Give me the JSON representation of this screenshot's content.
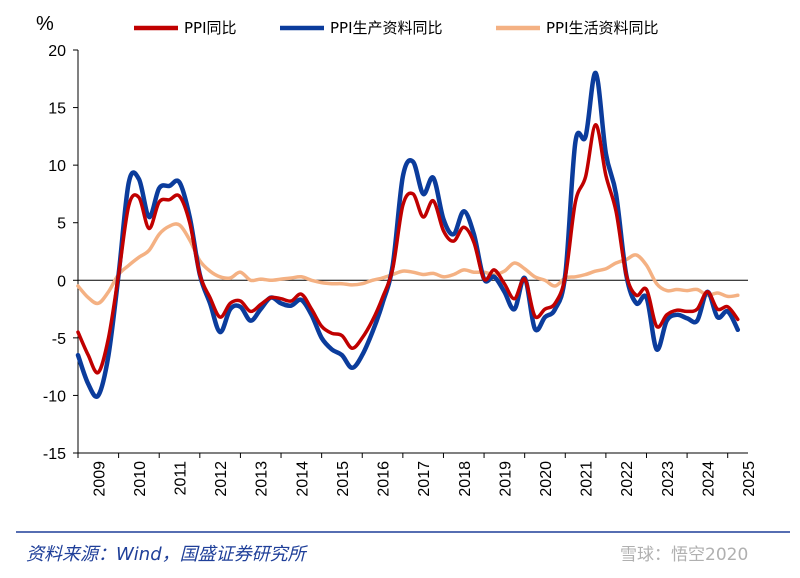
{
  "chart_data": {
    "type": "line",
    "y_unit": "%",
    "ylim": [
      -15,
      20
    ],
    "yticks": [
      -15,
      -10,
      -5,
      0,
      5,
      10,
      15,
      20
    ],
    "xlim": [
      2009.0,
      2025.5
    ],
    "xticks": [
      "2009",
      "2010",
      "2011",
      "2012",
      "2013",
      "2014",
      "2015",
      "2016",
      "2017",
      "2018",
      "2019",
      "2020",
      "2021",
      "2022",
      "2023",
      "2024",
      "2025"
    ],
    "grid": false,
    "legend_position": "top",
    "source_note": "资料来源：Wind，国盛证券研究所",
    "watermark": "雪球：悟空2020",
    "series": [
      {
        "name": "PPI同比",
        "color": "#c00000",
        "x": [
          2009.0,
          2009.25,
          2009.5,
          2009.75,
          2010.0,
          2010.25,
          2010.5,
          2010.75,
          2011.0,
          2011.25,
          2011.5,
          2011.75,
          2012.0,
          2012.25,
          2012.5,
          2012.75,
          2013.0,
          2013.25,
          2013.5,
          2013.75,
          2014.0,
          2014.25,
          2014.5,
          2014.75,
          2015.0,
          2015.25,
          2015.5,
          2015.75,
          2016.0,
          2016.25,
          2016.5,
          2016.75,
          2017.0,
          2017.25,
          2017.5,
          2017.75,
          2018.0,
          2018.25,
          2018.5,
          2018.75,
          2019.0,
          2019.25,
          2019.5,
          2019.75,
          2020.0,
          2020.25,
          2020.5,
          2020.75,
          2021.0,
          2021.25,
          2021.5,
          2021.75,
          2022.0,
          2022.25,
          2022.5,
          2022.75,
          2023.0,
          2023.25,
          2023.5,
          2023.75,
          2024.0,
          2024.25,
          2024.5,
          2024.75,
          2025.0,
          2025.25
        ],
        "values": [
          -4.5,
          -6.5,
          -8.0,
          -5.0,
          0.5,
          6.5,
          7.2,
          4.5,
          6.8,
          7.0,
          7.3,
          5.0,
          0.5,
          -1.5,
          -3.2,
          -2.0,
          -1.8,
          -2.7,
          -2.1,
          -1.5,
          -1.6,
          -1.8,
          -1.2,
          -2.5,
          -4.0,
          -4.6,
          -4.8,
          -5.9,
          -5.0,
          -3.5,
          -1.5,
          1.0,
          6.5,
          7.5,
          5.5,
          6.9,
          4.3,
          3.4,
          4.6,
          3.3,
          0.1,
          0.9,
          -0.3,
          -1.6,
          0.1,
          -3.1,
          -2.5,
          -2.0,
          0.3,
          6.8,
          9.0,
          13.5,
          9.1,
          6.0,
          0.5,
          -1.3,
          -0.8,
          -4.0,
          -3.0,
          -2.6,
          -2.7,
          -2.5,
          -1.0,
          -2.5,
          -2.3,
          -3.4
        ]
      },
      {
        "name": "PPI生产资料同比",
        "color": "#0b3c9c",
        "x": [
          2009.0,
          2009.25,
          2009.5,
          2009.75,
          2010.0,
          2010.25,
          2010.5,
          2010.75,
          2011.0,
          2011.25,
          2011.5,
          2011.75,
          2012.0,
          2012.25,
          2012.5,
          2012.75,
          2013.0,
          2013.25,
          2013.5,
          2013.75,
          2014.0,
          2014.25,
          2014.5,
          2014.75,
          2015.0,
          2015.25,
          2015.5,
          2015.75,
          2016.0,
          2016.25,
          2016.5,
          2016.75,
          2017.0,
          2017.25,
          2017.5,
          2017.75,
          2018.0,
          2018.25,
          2018.5,
          2018.75,
          2019.0,
          2019.25,
          2019.5,
          2019.75,
          2020.0,
          2020.25,
          2020.5,
          2020.75,
          2021.0,
          2021.25,
          2021.5,
          2021.75,
          2022.0,
          2022.25,
          2022.5,
          2022.75,
          2023.0,
          2023.25,
          2023.5,
          2023.75,
          2024.0,
          2024.25,
          2024.5,
          2024.75,
          2025.0,
          2025.25
        ],
        "values": [
          -6.5,
          -9.0,
          -10.0,
          -6.5,
          0.5,
          8.5,
          8.8,
          5.5,
          8.0,
          8.2,
          8.5,
          5.5,
          0.5,
          -2.0,
          -4.5,
          -2.5,
          -2.3,
          -3.5,
          -2.5,
          -1.5,
          -2.0,
          -2.2,
          -1.7,
          -3.0,
          -5.0,
          -6.0,
          -6.5,
          -7.6,
          -6.5,
          -4.5,
          -2.0,
          1.3,
          9.0,
          10.3,
          7.5,
          8.9,
          5.3,
          4.0,
          6.0,
          4.0,
          0.1,
          0.3,
          -1.0,
          -2.5,
          0.2,
          -4.2,
          -3.2,
          -2.5,
          0.5,
          12.0,
          12.5,
          18.0,
          11.0,
          7.5,
          0.5,
          -2.0,
          -1.5,
          -6.0,
          -3.5,
          -3.0,
          -3.3,
          -3.5,
          -1.0,
          -3.2,
          -2.7,
          -4.3
        ]
      },
      {
        "name": "PPI生活资料同比",
        "color": "#f4b183",
        "x": [
          2009.0,
          2009.25,
          2009.5,
          2009.75,
          2010.0,
          2010.25,
          2010.5,
          2010.75,
          2011.0,
          2011.25,
          2011.5,
          2011.75,
          2012.0,
          2012.25,
          2012.5,
          2012.75,
          2013.0,
          2013.25,
          2013.5,
          2013.75,
          2014.0,
          2014.25,
          2014.5,
          2014.75,
          2015.0,
          2015.25,
          2015.5,
          2015.75,
          2016.0,
          2016.25,
          2016.5,
          2016.75,
          2017.0,
          2017.25,
          2017.5,
          2017.75,
          2018.0,
          2018.25,
          2018.5,
          2018.75,
          2019.0,
          2019.25,
          2019.5,
          2019.75,
          2020.0,
          2020.25,
          2020.5,
          2020.75,
          2021.0,
          2021.25,
          2021.5,
          2021.75,
          2022.0,
          2022.25,
          2022.5,
          2022.75,
          2023.0,
          2023.25,
          2023.5,
          2023.75,
          2024.0,
          2024.25,
          2024.5,
          2024.75,
          2025.0,
          2025.25
        ],
        "values": [
          -0.5,
          -1.5,
          -2.0,
          -1.0,
          0.5,
          1.3,
          2.0,
          2.6,
          4.0,
          4.7,
          4.8,
          3.5,
          1.7,
          0.8,
          0.3,
          0.2,
          0.7,
          0.0,
          0.1,
          0.0,
          0.1,
          0.2,
          0.3,
          0.0,
          -0.2,
          -0.3,
          -0.3,
          -0.4,
          -0.3,
          0.0,
          0.2,
          0.5,
          0.8,
          0.7,
          0.5,
          0.6,
          0.3,
          0.5,
          0.9,
          0.7,
          0.7,
          0.5,
          0.8,
          1.5,
          1.0,
          0.3,
          0.0,
          -0.5,
          0.2,
          0.3,
          0.5,
          0.8,
          1.0,
          1.5,
          1.8,
          2.2,
          1.3,
          -0.3,
          -0.9,
          -0.8,
          -0.9,
          -0.8,
          -1.3,
          -1.1,
          -1.4,
          -1.3
        ]
      }
    ]
  }
}
